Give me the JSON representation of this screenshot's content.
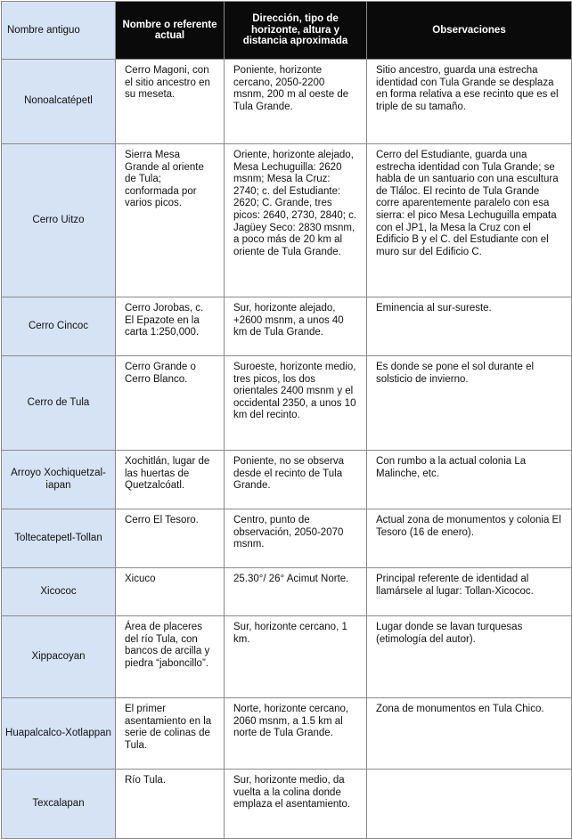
{
  "headers": [
    "Nombre antiguo",
    "Nombre o referente actual",
    "Dirección, tipo de horizonte, altura y distancia aproximada",
    "Observaciones"
  ],
  "rows": [
    {
      "name": "Nonoalcatépetl",
      "current": "Cerro Magoni, con el sitio ancestro en su meseta.",
      "direction": "Poniente, horizonte cercano, 2050-2200 msnm, 200 m al oeste de Tula Grande.",
      "notes": "Sitio ancestro, guarda una estrecha identidad con Tula Grande se desplaza en forma relativa a ese recinto que es el triple de su tamaño."
    },
    {
      "name": "Cerro Uitzo",
      "current": "Sierra Mesa Grande al oriente de Tula; conformada por varios picos.",
      "direction": "Oriente, horizonte alejado, Mesa Lechuguilla: 2620 msnm; Mesa la Cruz: 2740; c. del Estudiante: 2620; C. Grande, tres picos: 2640, 2730, 2840; c. Jagüey Seco: 2830 msnm, a poco más de 20 km al oriente de Tula Grande.",
      "notes": "Cerro del Estudiante, guarda una estrecha identidad con Tula Grande; se habla de un santuario con una escultura de Tláloc. El recinto de Tula Grande corre aparentemente paralelo con esa sierra: el pico Mesa Lechuguilla empata con el JP1, la Mesa la Cruz con el Edificio B y el C. del Estudiante con el muro sur del Edificio C."
    },
    {
      "name": "Cerro Cincoc",
      "current": "Cerro Jorobas, c. El Epazote en la carta 1:250,000.",
      "direction": "Sur, horizonte alejado, +2600 msnm, a unos 40 km de Tula Grande.",
      "notes": "Eminencia al sur-sureste."
    },
    {
      "name": "Cerro de Tula",
      "current": "Cerro Grande o Cerro Blanco.",
      "direction": "Suroeste, horizonte medio, tres picos, los dos orientales 2400 msnm y el occidental 2350, a unos 10 km del recinto.",
      "notes": "Es donde se pone el sol durante el solsticio de invierno."
    },
    {
      "name": "Arroyo Xochiquetzal-iapan",
      "current": "Xochitlán, lugar de las huertas de Quetzalcóatl.",
      "direction": "Poniente, no se observa desde el recinto de Tula Grande.",
      "notes": "Con rumbo a la actual colonia La Malinche, etc."
    },
    {
      "name": "Toltecatepetl-Tollan",
      "current": "Cerro El Tesoro.",
      "direction": "Centro, punto de observación, 2050-2070 msnm.",
      "notes": "Actual zona de monumentos y colonia El Tesoro (16 de enero)."
    },
    {
      "name": "Xicococ",
      "current": "Xicuco",
      "direction": "25.30°/ 26° Acimut Norte.",
      "notes": "Principal referente de identidad al llamársele al lugar: Tollan-Xicococ."
    },
    {
      "name": "Xippacoyan",
      "current": "Área de placeres del río Tula, con bancos de arcilla y piedra “jaboncillo”.",
      "direction": "Sur, horizonte cercano, 1 km.",
      "notes": "Lugar donde se lavan turquesas (etimología del autor)."
    },
    {
      "name": "Huapalcalco-Xotlappan",
      "current": "El primer asentamiento en la serie de colinas de Tula.",
      "direction": "Norte, horizonte cercano, 2060 msnm, a 1.5 km al norte de Tula Grande.",
      "notes": "Zona de monumentos en Tula Chico."
    },
    {
      "name": "Texcalapan",
      "current": "Río Tula.",
      "direction": "Sur, horizonte medio, da vuelta a la colina donde emplaza el asentamiento.",
      "notes": ""
    }
  ]
}
